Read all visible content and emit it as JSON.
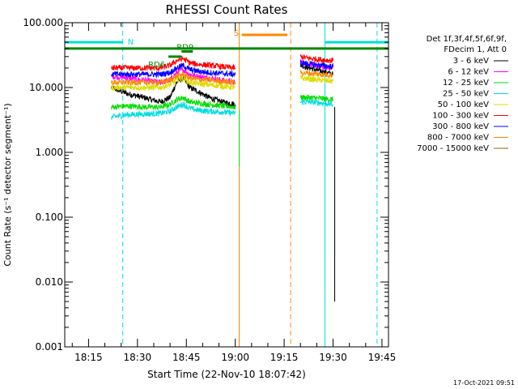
{
  "chart_data": {
    "type": "line",
    "title": "RHESSI Count Rates",
    "xlabel": "Start Time (22-Nov-10 18:07:42)",
    "ylabel": "Count Rate (s⁻¹ detector segment⁻¹)",
    "yscale": "log",
    "ylim": [
      0.001,
      100
    ],
    "xlim": [
      "18:07:42",
      "19:47:00"
    ],
    "x_ticks": [
      "18:15",
      "18:30",
      "18:45",
      "19:00",
      "19:15",
      "19:30",
      "19:45"
    ],
    "y_ticks": [
      "0.001",
      "0.010",
      "0.100",
      "1.000",
      "10.000",
      "100.000"
    ],
    "legend": {
      "placement": "right",
      "header": [
        "Det 1f,3f,4f,5f,6f,9f,",
        "FDecim 1, Att 0"
      ]
    },
    "series": [
      {
        "name": "3 - 6 keV",
        "color": "#000000",
        "segments": [
          {
            "x": [
              "18:22",
              "18:27",
              "18:32",
              "18:37",
              "18:40",
              "18:42",
              "18:44",
              "18:46",
              "18:48",
              "18:52",
              "18:56",
              "19:00"
            ],
            "y": [
              10,
              8,
              7,
              6,
              7,
              12,
              14,
              10,
              9,
              7,
              6,
              5.5
            ]
          },
          {
            "x": [
              "19:20",
              "19:23",
              "19:26",
              "19:30"
            ],
            "y": [
              22,
              20,
              18,
              16
            ]
          }
        ]
      },
      {
        "name": "6 - 12 keV",
        "color": "#ff00ff",
        "segments": [
          {
            "x": [
              "18:22",
              "18:27",
              "18:32",
              "18:37",
              "18:40",
              "18:42",
              "18:44",
              "18:46",
              "18:48",
              "18:52",
              "18:56",
              "19:00"
            ],
            "y": [
              15,
              14,
              13,
              12,
              13,
              17,
              19,
              16,
              15,
              14,
              13,
              12
            ]
          },
          {
            "x": [
              "19:20",
              "19:23",
              "19:26",
              "19:30"
            ],
            "y": [
              25,
              23,
              21,
              20
            ]
          }
        ]
      },
      {
        "name": "12 - 25 keV",
        "color": "#00dd00",
        "segments": [
          {
            "x": [
              "18:22",
              "18:27",
              "18:32",
              "18:37",
              "18:40",
              "18:42",
              "18:44",
              "18:46",
              "18:48",
              "18:52",
              "18:56",
              "19:00"
            ],
            "y": [
              5,
              5.2,
              5,
              5,
              5.5,
              6.5,
              7,
              6,
              5.8,
              5.5,
              5.2,
              5
            ]
          },
          {
            "x": [
              "19:20",
              "19:23",
              "19:26",
              "19:30"
            ],
            "y": [
              7,
              7,
              6.8,
              6.5
            ]
          }
        ]
      },
      {
        "name": "25 - 50 keV",
        "color": "#00dddd",
        "segments": [
          {
            "x": [
              "18:22",
              "18:27",
              "18:32",
              "18:37",
              "18:40",
              "18:42",
              "18:44",
              "18:46",
              "18:48",
              "18:52",
              "18:56",
              "19:00"
            ],
            "y": [
              3.5,
              3.8,
              3.9,
              4,
              4.3,
              5,
              5.5,
              4.8,
              4.5,
              4.3,
              4.2,
              4
            ]
          },
          {
            "x": [
              "19:20",
              "19:23",
              "19:26",
              "19:30"
            ],
            "y": [
              6,
              6,
              5.8,
              5.5
            ]
          }
        ]
      },
      {
        "name": "50 - 100 keV",
        "color": "#dddd00",
        "segments": [
          {
            "x": [
              "18:22",
              "18:27",
              "18:32",
              "18:37",
              "18:40",
              "18:42",
              "18:44",
              "18:46",
              "18:48",
              "18:52",
              "18:56",
              "19:00"
            ],
            "y": [
              10,
              10,
              10,
              10,
              11,
              13,
              14,
              12,
              11.5,
              11,
              10.5,
              10
            ]
          },
          {
            "x": [
              "19:20",
              "19:23",
              "19:26",
              "19:30"
            ],
            "y": [
              14,
              13.5,
              13,
              12.5
            ]
          }
        ]
      },
      {
        "name": "100 - 300 keV",
        "color": "#ff0000",
        "segments": [
          {
            "x": [
              "18:22",
              "18:27",
              "18:32",
              "18:37",
              "18:40",
              "18:42",
              "18:44",
              "18:46",
              "18:48",
              "18:52",
              "18:56",
              "19:00"
            ],
            "y": [
              20,
              20,
              20,
              20,
              22,
              26,
              28,
              24,
              23,
              22,
              21,
              20
            ]
          },
          {
            "x": [
              "19:20",
              "19:23",
              "19:26",
              "19:30"
            ],
            "y": [
              30,
              28,
              27,
              26
            ]
          }
        ]
      },
      {
        "name": "300 - 800 keV",
        "color": "#0000ff",
        "segments": [
          {
            "x": [
              "18:22",
              "18:27",
              "18:32",
              "18:37",
              "18:40",
              "18:42",
              "18:44",
              "18:46",
              "18:48",
              "18:52",
              "18:56",
              "19:00"
            ],
            "y": [
              16,
              16,
              16,
              16,
              17,
              20,
              22,
              19,
              18,
              17,
              16.5,
              16
            ]
          },
          {
            "x": [
              "19:20",
              "19:23",
              "19:26",
              "19:30"
            ],
            "y": [
              24,
              23,
              22,
              21
            ]
          }
        ]
      },
      {
        "name": "800 - 7000 keV",
        "color": "#ff8800",
        "segments": [
          {
            "x": [
              "18:22",
              "18:27",
              "18:32",
              "18:37",
              "18:40",
              "18:42",
              "18:44",
              "18:46",
              "18:48",
              "18:52",
              "18:56",
              "19:00"
            ],
            "y": [
              12,
              12,
              12,
              12,
              13,
              15,
              16,
              14,
              13.5,
              13,
              12.5,
              12
            ]
          },
          {
            "x": [
              "19:20",
              "19:23",
              "19:26",
              "19:30"
            ],
            "y": [
              17,
              16.5,
              16,
              15.5
            ]
          }
        ]
      },
      {
        "name": "7000 - 15000 keV",
        "color": "#886600",
        "segments": []
      }
    ],
    "vertical_lines": [
      {
        "x": "18:07:42",
        "color": "#00dddd",
        "style": "solid"
      },
      {
        "x": "18:25:30",
        "color": "#00dddd",
        "style": "dashed"
      },
      {
        "x": "19:01:12",
        "color": "#ff8800",
        "style": "solid"
      },
      {
        "x": "19:17:00",
        "color": "#ff8800",
        "style": "dashed"
      },
      {
        "x": "19:27:30",
        "color": "#00dddd",
        "style": "solid"
      },
      {
        "x": "19:43:30",
        "color": "#00dddd",
        "style": "dashed"
      }
    ],
    "drops": [
      {
        "x": "19:01:12",
        "color": "#00dd00",
        "from": 4.5,
        "to": 0.6
      },
      {
        "x": "19:30:30",
        "color": "#00dddd",
        "from": 5,
        "to": 0.025
      },
      {
        "x": "19:30:30",
        "color": "#00dd00",
        "from": 5,
        "to": 0.01
      },
      {
        "x": "19:30:30",
        "color": "#000000",
        "from": 5,
        "to": 0.005
      }
    ],
    "flag_bars": [
      {
        "label": "N",
        "color": "#00dddd",
        "y": 50,
        "segments": [
          [
            "18:07:42",
            "18:25:30"
          ],
          [
            "19:27:30",
            "19:47:00"
          ]
        ]
      },
      {
        "label": "",
        "color": "#008800",
        "y": 40,
        "segments": [
          [
            "18:07:42",
            "19:47:00"
          ]
        ]
      },
      {
        "label": "S",
        "color": "#ff8800",
        "y": 65,
        "segments": [
          [
            "19:02:00",
            "19:16:00"
          ]
        ]
      },
      {
        "label": "RD6",
        "color": "#008800",
        "y": 30,
        "segments": [
          [
            "18:39:30",
            "18:43:30"
          ]
        ]
      },
      {
        "label": "RD9",
        "color": "#008800",
        "y": 36,
        "segments": [
          [
            "18:43:30",
            "18:47:00"
          ]
        ]
      }
    ],
    "timestamp": "17-Oct-2021 09:51"
  }
}
